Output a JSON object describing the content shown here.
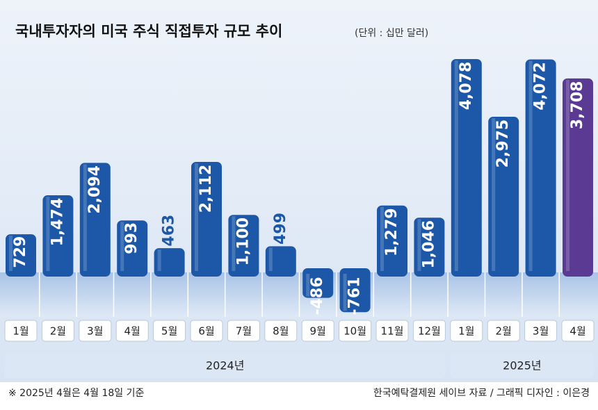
{
  "chart_data": {
    "type": "bar",
    "title": "국내투자자의 미국 주식 직접투자 규모 추이",
    "subtitle": "(단위 : 십만 달러)",
    "categories": [
      "1월",
      "2월",
      "3월",
      "4월",
      "5월",
      "6월",
      "7월",
      "8월",
      "9월",
      "10월",
      "11월",
      "12월",
      "1월",
      "2월",
      "3월",
      "4월"
    ],
    "values": [
      729,
      1474,
      2094,
      993,
      463,
      2112,
      1100,
      499,
      -486,
      -761,
      1279,
      1046,
      4078,
      2975,
      4072,
      3708
    ],
    "value_labels": [
      "729",
      "1,474",
      "2,094",
      "993",
      "463",
      "2,112",
      "1,100",
      "499",
      "-486",
      "-761",
      "1,279",
      "1,046",
      "4,078",
      "2,975",
      "4,072",
      "3,708"
    ],
    "colors": [
      "#1d58a8",
      "#1d58a8",
      "#1d58a8",
      "#1d58a8",
      "#1d58a8",
      "#1d58a8",
      "#1d58a8",
      "#1d58a8",
      "#1d58a8",
      "#1d58a8",
      "#1d58a8",
      "#1d58a8",
      "#1d58a8",
      "#1d58a8",
      "#1d58a8",
      "#5b3a94"
    ],
    "groups": [
      {
        "label": "2024년",
        "count": 12
      },
      {
        "label": "2025년",
        "count": 4
      }
    ],
    "footnote": "※ 2025년 4월은 4월 18일 기준",
    "source": "한국예탁결제원 세이브 자료 / 그래픽 디자인 : 이은경"
  }
}
